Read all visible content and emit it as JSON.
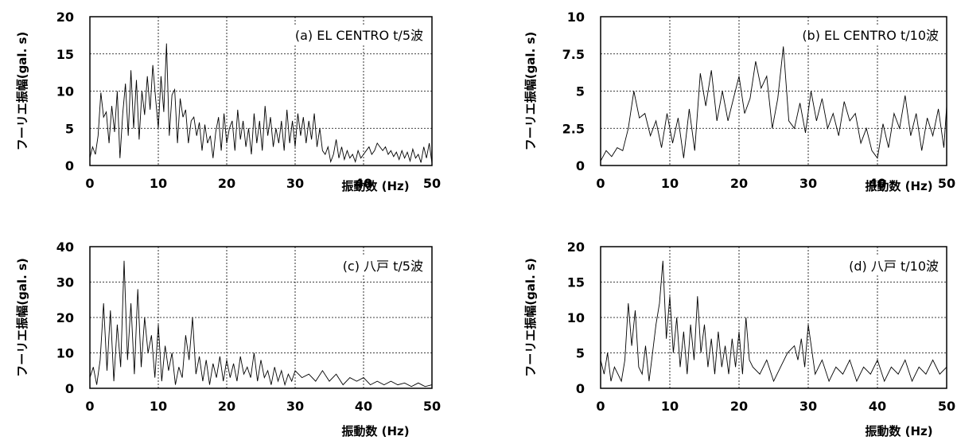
{
  "chart_data": [
    {
      "type": "line",
      "annotation": "(a) EL CENTRO t/5波",
      "ylabel": "フーリエ振幅(gal. s)",
      "xlabel": "振動数 (Hz)",
      "xlim": [
        0,
        50
      ],
      "ylim": [
        0,
        20
      ],
      "xticks": [
        "0",
        "10",
        "20",
        "30",
        "40",
        "50"
      ],
      "yticks": [
        "0",
        "5",
        "10",
        "15",
        "20"
      ],
      "grid": true,
      "series": [
        {
          "x": [
            0,
            0.4,
            0.8,
            1.2,
            1.6,
            2.0,
            2.4,
            2.8,
            3.2,
            3.6,
            4.0,
            4.4,
            4.8,
            5.2,
            5.6,
            6.0,
            6.4,
            6.8,
            7.2,
            7.6,
            8.0,
            8.4,
            8.8,
            9.2,
            9.6,
            10.0,
            10.4,
            10.8,
            11.2,
            11.6,
            12.0,
            12.4,
            12.8,
            13.2,
            13.6,
            14.0,
            14.4,
            14.8,
            15.2,
            15.6,
            16.0,
            16.4,
            16.8,
            17.2,
            17.6,
            18.0,
            18.4,
            18.8,
            19.2,
            19.6,
            20.0,
            20.4,
            20.8,
            21.2,
            21.6,
            22.0,
            22.4,
            22.8,
            23.2,
            23.6,
            24.0,
            24.4,
            24.8,
            25.2,
            25.6,
            26.0,
            26.4,
            26.8,
            27.2,
            27.6,
            28.0,
            28.4,
            28.8,
            29.2,
            29.6,
            30.0,
            30.4,
            30.8,
            31.2,
            31.6,
            32.0,
            32.4,
            32.8,
            33.2,
            33.6,
            34.0,
            34.4,
            34.8,
            35.2,
            35.6,
            36.0,
            36.4,
            36.8,
            37.2,
            37.6,
            38.0,
            38.4,
            38.8,
            39.2,
            39.6,
            40.0,
            40.4,
            40.8,
            41.2,
            41.6,
            42.0,
            42.4,
            42.8,
            43.2,
            43.6,
            44.0,
            44.4,
            44.8,
            45.2,
            45.6,
            46.0,
            46.4,
            46.8,
            47.2,
            47.6,
            48.0,
            48.4,
            48.8,
            49.2,
            49.6,
            50.0
          ],
          "y": [
            1,
            2.5,
            1.5,
            4,
            9.8,
            6.5,
            7.2,
            3,
            8,
            4.5,
            10,
            1,
            7,
            11,
            4,
            12.8,
            5,
            11.5,
            3.5,
            10,
            6.8,
            12,
            7.5,
            13.5,
            9,
            5,
            12,
            7.2,
            16.4,
            4,
            9.5,
            10.2,
            3,
            9,
            6.5,
            7.5,
            3,
            6,
            6.5,
            4,
            5.8,
            2,
            5.5,
            3,
            4,
            1,
            4.5,
            6.5,
            2,
            7,
            3,
            5,
            6,
            2,
            7.5,
            3.5,
            6,
            2.5,
            5,
            1.5,
            7,
            3,
            6,
            2,
            8,
            4,
            6.5,
            2.5,
            5,
            3,
            6,
            2,
            7.5,
            3,
            6,
            2.5,
            7,
            4,
            6.5,
            3,
            6,
            3.5,
            7,
            2.5,
            5,
            2,
            1.5,
            2.5,
            0.5,
            1.5,
            3.5,
            1,
            2.5,
            0.8,
            2,
            1,
            1.5,
            0.5,
            2,
            1,
            1.5,
            2,
            2.5,
            1.5,
            2,
            3,
            2.5,
            2,
            2.5,
            1.5,
            2,
            1.2,
            1.8,
            0.8,
            2,
            1,
            1.8,
            0.6,
            2.2,
            1,
            1.5,
            0.4,
            2.5,
            1,
            3,
            0.3
          ]
        }
      ]
    },
    {
      "type": "line",
      "annotation": "(b) EL CENTRO t/10波",
      "ylabel": "フーリエ振幅(gal. s)",
      "xlabel": "振動数 (Hz)",
      "xlim": [
        0,
        50
      ],
      "ylim": [
        0,
        10
      ],
      "xticks": [
        "0",
        "10",
        "20",
        "30",
        "40",
        "50"
      ],
      "yticks": [
        "0",
        "2.5",
        "5",
        "7.5",
        "10"
      ],
      "grid": true,
      "series": [
        {
          "x": [
            0,
            0.8,
            1.6,
            2.4,
            3.2,
            4.0,
            4.8,
            5.6,
            6.4,
            7.2,
            8.0,
            8.8,
            9.6,
            10.4,
            11.2,
            12.0,
            12.8,
            13.6,
            14.4,
            15.2,
            16.0,
            16.8,
            17.6,
            18.4,
            19.2,
            20.0,
            20.8,
            21.6,
            22.4,
            23.2,
            24.0,
            24.8,
            25.6,
            26.4,
            27.2,
            28.0,
            28.8,
            29.6,
            30.4,
            31.2,
            32.0,
            32.8,
            33.6,
            34.4,
            35.2,
            36.0,
            36.8,
            37.6,
            38.4,
            39.2,
            40.0,
            40.8,
            41.6,
            42.4,
            43.2,
            44.0,
            44.8,
            45.6,
            46.4,
            47.2,
            48.0,
            48.8,
            49.6,
            50.0
          ],
          "y": [
            0.3,
            1,
            0.6,
            1.2,
            1,
            2.5,
            5,
            3.2,
            3.5,
            2,
            3,
            1.2,
            3.5,
            1.5,
            3.2,
            0.5,
            3.8,
            1,
            6.2,
            4,
            6.4,
            3,
            5,
            3,
            4.5,
            6,
            3.5,
            4.5,
            7,
            5.2,
            6,
            2.5,
            4.5,
            8,
            3,
            2.5,
            4.2,
            2.2,
            5,
            3,
            4.5,
            2.5,
            3.5,
            2,
            4.3,
            3,
            3.5,
            1.5,
            2.5,
            1,
            0.5,
            2.8,
            1.2,
            3.5,
            2.5,
            4.7,
            2,
            3.5,
            1,
            3.2,
            2,
            3.8,
            1.2,
            4
          ],
          "notes": ""
        }
      ]
    },
    {
      "type": "line",
      "annotation": "(c) 八戸 t/5波",
      "ylabel": "フーリエ振幅(gal. s)",
      "xlabel": "振動数 (Hz)",
      "xlim": [
        0,
        50
      ],
      "ylim": [
        0,
        40
      ],
      "xticks": [
        "0",
        "10",
        "20",
        "30",
        "40",
        "50"
      ],
      "yticks": [
        "0",
        "10",
        "20",
        "30",
        "40"
      ],
      "grid": true,
      "series": [
        {
          "x": [
            0,
            0.5,
            1.0,
            1.5,
            2.0,
            2.5,
            3.0,
            3.5,
            4.0,
            4.5,
            5.0,
            5.5,
            6.0,
            6.5,
            7.0,
            7.5,
            8.0,
            8.5,
            9.0,
            9.5,
            10.0,
            10.5,
            11.0,
            11.5,
            12.0,
            12.5,
            13.0,
            13.5,
            14.0,
            14.5,
            15.0,
            15.5,
            16.0,
            16.5,
            17.0,
            17.5,
            18.0,
            18.5,
            19.0,
            19.5,
            20.0,
            20.5,
            21.0,
            21.5,
            22.0,
            22.5,
            23.0,
            23.5,
            24.0,
            24.5,
            25.0,
            25.5,
            26.0,
            26.5,
            27.0,
            27.5,
            28.0,
            28.5,
            29.0,
            29.5,
            30.0,
            31.0,
            32.0,
            33.0,
            34.0,
            35.0,
            36.0,
            37.0,
            38.0,
            39.0,
            40.0,
            41.0,
            42.0,
            43.0,
            44.0,
            45.0,
            46.0,
            47.0,
            48.0,
            49.0,
            50.0
          ],
          "y": [
            3,
            6,
            1,
            8,
            24,
            5,
            22,
            2,
            18,
            6,
            36,
            8,
            24,
            4,
            28,
            6,
            20,
            10,
            15,
            3,
            18,
            2,
            12,
            5,
            10,
            1,
            6,
            3,
            15,
            8,
            20,
            4,
            9,
            2,
            8,
            1,
            7,
            3,
            9,
            2,
            8,
            3,
            7,
            2,
            9,
            4,
            6,
            3,
            10,
            2,
            8,
            3,
            5,
            1,
            6,
            2,
            5,
            1,
            4,
            2,
            5,
            3,
            4,
            2,
            5,
            2,
            4,
            1,
            3,
            2,
            3,
            1,
            2,
            1,
            2,
            1,
            1.5,
            0.5,
            1.5,
            0.5,
            1
          ]
        }
      ]
    },
    {
      "type": "line",
      "annotation": "(d) 八戸 t/10波",
      "ylabel": "フーリエ振幅(gal. s)",
      "xlabel": "振動数 (Hz)",
      "xlim": [
        0,
        50
      ],
      "ylim": [
        0,
        20
      ],
      "xticks": [
        "0",
        "10",
        "20",
        "30",
        "40",
        "50"
      ],
      "yticks": [
        "0",
        "5",
        "10",
        "15",
        "20"
      ],
      "grid": true,
      "series": [
        {
          "x": [
            0,
            0.5,
            1.0,
            1.5,
            2.0,
            2.5,
            3.0,
            3.5,
            4.0,
            4.5,
            5.0,
            5.5,
            6.0,
            6.5,
            7.0,
            7.5,
            8.0,
            8.5,
            9.0,
            9.5,
            10.0,
            10.5,
            11.0,
            11.5,
            12.0,
            12.5,
            13.0,
            13.5,
            14.0,
            14.5,
            15.0,
            15.5,
            16.0,
            16.5,
            17.0,
            17.5,
            18.0,
            18.5,
            19.0,
            19.5,
            20.0,
            20.5,
            21.0,
            21.5,
            22.0,
            23.0,
            24.0,
            25.0,
            26.0,
            27.0,
            28.0,
            28.5,
            29.0,
            29.5,
            30.0,
            31.0,
            32.0,
            33.0,
            34.0,
            35.0,
            36.0,
            37.0,
            38.0,
            39.0,
            40.0,
            41.0,
            42.0,
            43.0,
            44.0,
            45.0,
            46.0,
            47.0,
            48.0,
            49.0,
            50.0
          ],
          "y": [
            4,
            2,
            5,
            1,
            3,
            2,
            1,
            4,
            12,
            6,
            11,
            3,
            2,
            6,
            1,
            5,
            9,
            12,
            18,
            7,
            13,
            5,
            10,
            3,
            8,
            2,
            9,
            4,
            13,
            5,
            9,
            3,
            7,
            2,
            8,
            3,
            6,
            2,
            7,
            3,
            8,
            2,
            10,
            4,
            3,
            2,
            4,
            1,
            3,
            5,
            6,
            4,
            7,
            3,
            9,
            2,
            4,
            1,
            3,
            2,
            4,
            1,
            3,
            2,
            4,
            1,
            3,
            2,
            4,
            1,
            3,
            2,
            4,
            2,
            3
          ]
        }
      ]
    }
  ]
}
